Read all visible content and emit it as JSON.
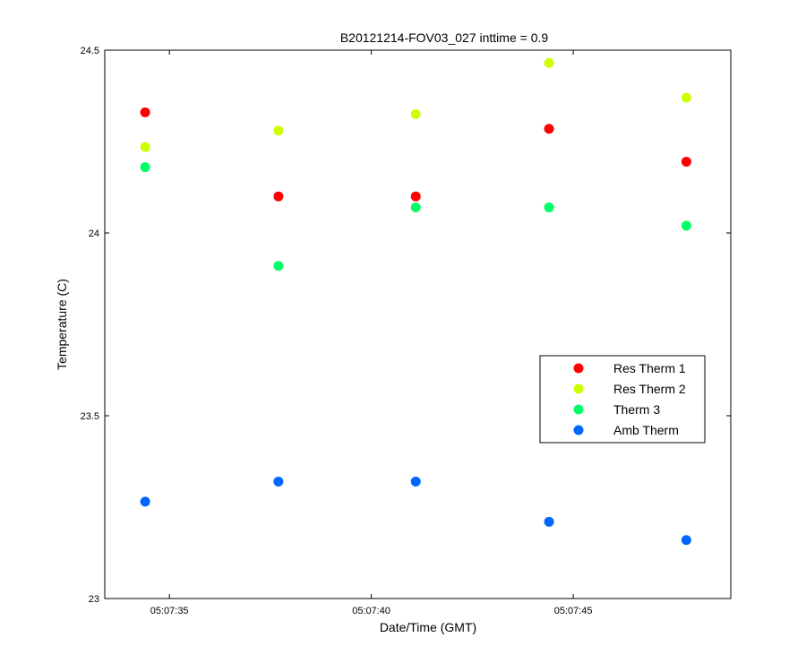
{
  "chart_data": {
    "type": "scatter",
    "title": "B20121214-FOV03_027 inttime = 0.9",
    "xlabel": "Date/Time (GMT)",
    "ylabel": "Temperature (C)",
    "x_unit": "time_hh:mm:ss",
    "x": [
      "05:07:34.4",
      "05:07:37.7",
      "05:07:41.1",
      "05:07:44.4",
      "05:07:47.8"
    ],
    "xlim": [
      "05:07:33.4",
      "05:07:48.9"
    ],
    "xticks": [
      "05:07:35",
      "05:07:40",
      "05:07:45"
    ],
    "ylim": [
      23,
      24.5
    ],
    "yticks": [
      "23",
      "23.5",
      "24",
      "24.5"
    ],
    "grid": false,
    "legend_position": "right-center",
    "series": [
      {
        "name": "Res Therm 1",
        "color": "#ff0000",
        "values": [
          24.33,
          24.1,
          24.1,
          24.285,
          24.195
        ]
      },
      {
        "name": "Res Therm 2",
        "color": "#ccff00",
        "values": [
          24.235,
          24.28,
          24.325,
          24.465,
          24.37
        ]
      },
      {
        "name": "Therm 3",
        "color": "#00ff66",
        "values": [
          24.18,
          23.91,
          24.07,
          24.07,
          24.02
        ]
      },
      {
        "name": "Amb Therm",
        "color": "#0066ff",
        "values": [
          23.265,
          23.32,
          23.32,
          23.21,
          23.16
        ]
      }
    ]
  }
}
